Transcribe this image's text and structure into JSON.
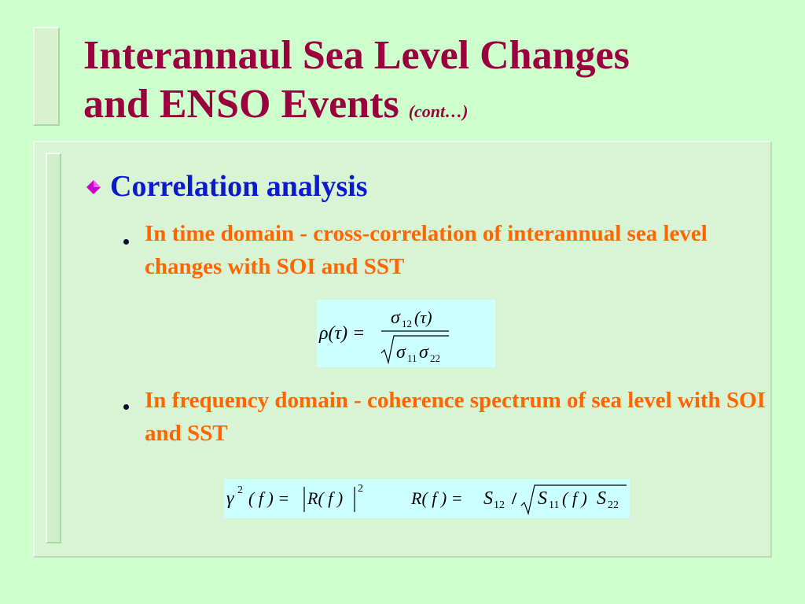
{
  "slide": {
    "title_line1": "Interannaul Sea Level Changes",
    "title_line2": "and ENSO Events",
    "title_suffix": "(cont…)",
    "heading": "Correlation analysis",
    "items": [
      "In time domain - cross-correlation of interannual sea level changes with SOI and SST",
      "In frequency domain - coherence spectrum of sea level with SOI and SST"
    ],
    "formula1": {
      "lhs": "ρ(τ) =",
      "numerator_symbol": "σ",
      "numerator_sub": "12",
      "numerator_arg": "(τ)",
      "denominator_symbol1": "σ",
      "denominator_sub1": "11",
      "denominator_symbol2": "σ",
      "denominator_sub2": "22"
    },
    "formula2": {
      "gamma": "γ",
      "gamma_sup": "2",
      "gamma_arg": "( f ) =",
      "abs_content": "R( f )",
      "abs_sup": "2",
      "r_lhs": "R( f ) =",
      "s12": "S",
      "s12_sub": "12",
      "slash": "/",
      "s11": "S",
      "s11_sub": "11",
      "s11_arg": "( f )",
      "s22": "S",
      "s22_sub": "22"
    }
  },
  "colors": {
    "background": "#ccffcc",
    "title": "#99003d",
    "heading": "#0a1acc",
    "item_text": "#ff6600",
    "diamond": "#cc00cc",
    "formula_bg": "#ccffff"
  }
}
